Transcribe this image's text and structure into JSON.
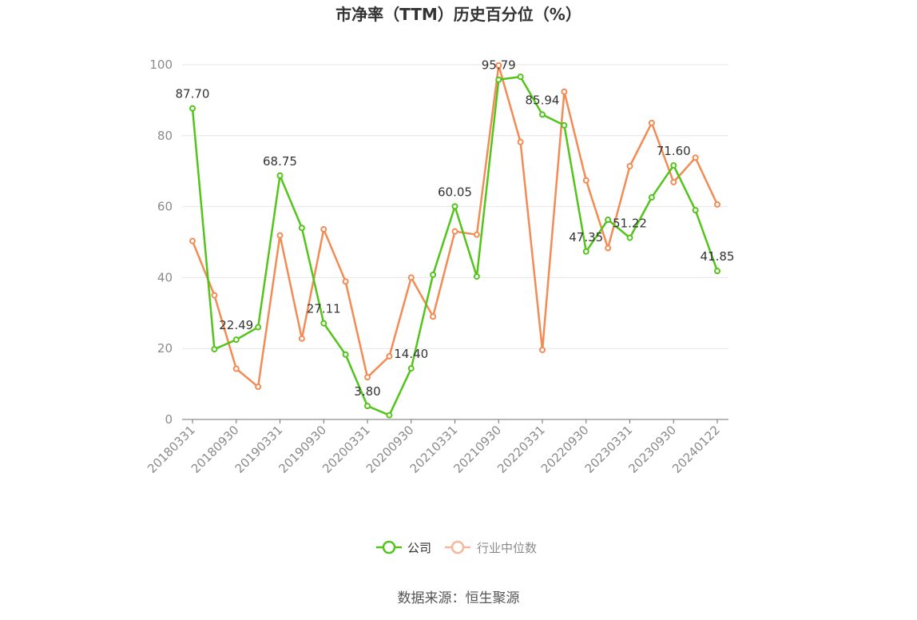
{
  "chart_data": {
    "type": "line",
    "title": "市净率（TTM）历史百分位（%）",
    "source": "数据来源：恒生聚源",
    "ylim": [
      0,
      100
    ],
    "yticks": [
      0,
      20,
      40,
      60,
      80,
      100
    ],
    "grid": true,
    "legend_position": "bottom",
    "x_tick_labels": [
      "20180331",
      "20180930",
      "20190331",
      "20190930",
      "20200331",
      "20200930",
      "20210331",
      "20210930",
      "20220331",
      "20220930",
      "20230331",
      "20230930",
      "20240122"
    ],
    "x": [
      "20180331",
      "20180630",
      "20180930",
      "20181231",
      "20190331",
      "20190630",
      "20190930",
      "20191231",
      "20200331",
      "20200630",
      "20200930",
      "20201231",
      "20210331",
      "20210630",
      "20210930",
      "20211231",
      "20220331",
      "20220630",
      "20220930",
      "20221231",
      "20230331",
      "20230630",
      "20230930",
      "20231231",
      "20240122"
    ],
    "series": [
      {
        "name": "公司",
        "color": "#52c41a",
        "values": [
          87.7,
          19.8,
          22.49,
          26.0,
          68.75,
          54.0,
          27.11,
          18.3,
          3.8,
          1.2,
          14.4,
          40.8,
          60.05,
          40.3,
          95.79,
          96.6,
          85.94,
          82.9,
          47.35,
          56.3,
          51.22,
          62.6,
          71.6,
          59.0,
          41.85
        ]
      },
      {
        "name": "行业中位数",
        "color": "#f28b54",
        "values": [
          50.3,
          35.0,
          14.3,
          9.2,
          51.9,
          22.8,
          53.6,
          38.9,
          11.9,
          17.8,
          40.0,
          29.0,
          53.0,
          52.1,
          99.8,
          78.2,
          19.6,
          92.4,
          67.4,
          48.3,
          71.4,
          83.6,
          66.9,
          73.8,
          60.6
        ]
      }
    ],
    "data_labels": [
      {
        "index": 0,
        "text": "87.70"
      },
      {
        "index": 2,
        "text": "22.49"
      },
      {
        "index": 4,
        "text": "68.75"
      },
      {
        "index": 6,
        "text": "27.11"
      },
      {
        "index": 8,
        "text": "3.80"
      },
      {
        "index": 10,
        "text": "14.40"
      },
      {
        "index": 12,
        "text": "60.05"
      },
      {
        "index": 14,
        "text": "95.79"
      },
      {
        "index": 16,
        "text": "85.94"
      },
      {
        "index": 18,
        "text": "47.35"
      },
      {
        "index": 20,
        "text": "51.22"
      },
      {
        "index": 22,
        "text": "71.60"
      },
      {
        "index": 24,
        "text": "41.85"
      }
    ]
  }
}
